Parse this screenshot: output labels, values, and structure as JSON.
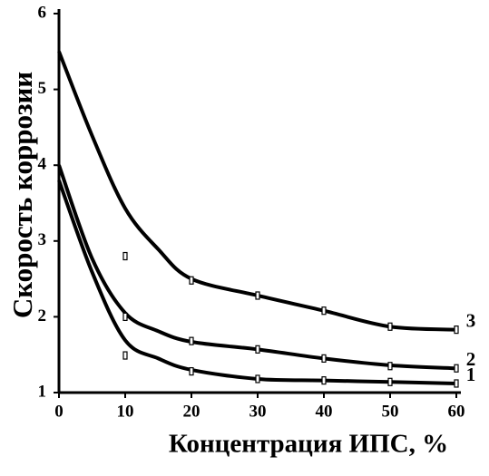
{
  "chart_data": {
    "type": "line",
    "x_label": "Концентрация ИПС, %",
    "y_label": "Скорость коррозии",
    "x": [
      0,
      5,
      10,
      15,
      20,
      30,
      40,
      50,
      60
    ],
    "series": [
      {
        "name": "1",
        "color": "#000000",
        "values": [
          3.8,
          2.59,
          1.69,
          1.45,
          1.3,
          1.18,
          1.16,
          1.14,
          1.12
        ],
        "marker_x": [
          10,
          20,
          30,
          40,
          50,
          60
        ],
        "markers": [
          1.49,
          1.28,
          1.18,
          1.16,
          1.14,
          1.12
        ]
      },
      {
        "name": "2",
        "color": "#000000",
        "values": [
          4.0,
          2.77,
          2.05,
          1.81,
          1.67,
          1.57,
          1.45,
          1.36,
          1.32
        ],
        "marker_x": [
          10,
          20,
          30,
          40,
          50,
          60
        ],
        "markers": [
          2.0,
          1.68,
          1.57,
          1.45,
          1.35,
          1.32
        ]
      },
      {
        "name": "3",
        "color": "#000000",
        "values": [
          5.5,
          4.39,
          3.43,
          2.89,
          2.5,
          2.28,
          2.08,
          1.87,
          1.83
        ],
        "marker_x": [
          10,
          20,
          30,
          40,
          50,
          60
        ],
        "markers": [
          2.8,
          2.48,
          2.28,
          2.08,
          1.87,
          1.83
        ]
      }
    ],
    "xlim": [
      0,
      60
    ],
    "xticks": [
      0,
      10,
      20,
      30,
      40,
      50,
      60
    ],
    "ylim": [
      1,
      6
    ],
    "yticks": [
      1,
      2,
      3,
      4,
      5,
      6
    ],
    "grid": false
  }
}
